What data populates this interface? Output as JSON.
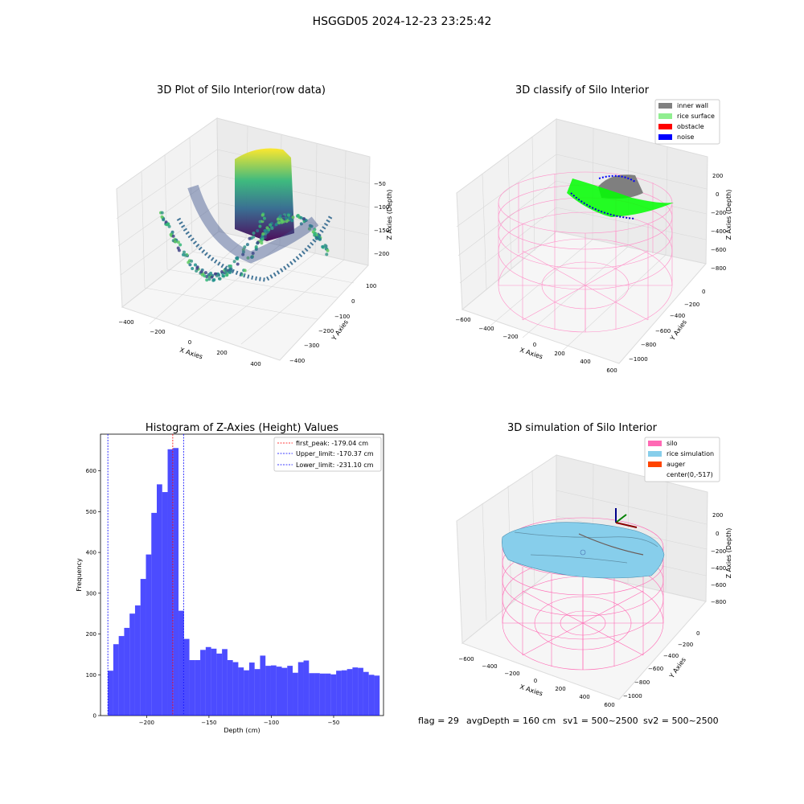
{
  "figure": {
    "suptitle": "HSGGD05 2024-12-23 23:25:42",
    "footer": {
      "flag": "flag = 29",
      "avg": "avgDepth = 160 cm",
      "sv1": "sv1 = 500~2500",
      "sv2": "sv2 = 500~2500"
    }
  },
  "chart_data": [
    {
      "type": "scatter3d",
      "title": "3D Plot of Silo Interior(row data)",
      "xlabel": "X Axies",
      "ylabel": "Y Axies",
      "zlabel": "Z Axies (Depth)",
      "xticks": [
        "−400",
        "−200",
        "0",
        "200",
        "400"
      ],
      "yticks": [
        "100",
        "0",
        "−100",
        "−200",
        "−300",
        "−400"
      ],
      "zticks": [
        "−50",
        "−100",
        "−150",
        "−200"
      ],
      "colormap": "viridis"
    },
    {
      "type": "scatter3d",
      "title": "3D classify of Silo Interior",
      "xlabel": "X Axies",
      "ylabel": "Y Axies",
      "zlabel": "Z Axies (Depth)",
      "xticks": [
        "−600",
        "−400",
        "−200",
        "0",
        "200",
        "400",
        "600"
      ],
      "yticks": [
        "0",
        "−200",
        "−400",
        "−600",
        "−800",
        "−1000"
      ],
      "zticks": [
        "200",
        "0",
        "−200",
        "−400",
        "−600",
        "−800"
      ],
      "legend": [
        {
          "label": "inner wall",
          "color": "#808080"
        },
        {
          "label": "rice surface",
          "color": "#90ee90"
        },
        {
          "label": "obstacle",
          "color": "#ff0000"
        },
        {
          "label": "noise",
          "color": "#0000ff"
        }
      ],
      "legend_position": "top-right"
    },
    {
      "type": "bar",
      "title": "Histogram of Z-Axies (Height) Values",
      "xlabel": "Depth (cm)",
      "ylabel": "Frequency",
      "xlim": [
        -237,
        -10
      ],
      "ylim": [
        0,
        690
      ],
      "xticks": [
        {
          "v": -200,
          "l": "−200"
        },
        {
          "v": -150,
          "l": "−150"
        },
        {
          "v": -100,
          "l": "−100"
        },
        {
          "v": -50,
          "l": "−50"
        }
      ],
      "yticks": [
        {
          "v": 0,
          "l": "0"
        },
        {
          "v": 100,
          "l": "100"
        },
        {
          "v": 200,
          "l": "200"
        },
        {
          "v": 300,
          "l": "300"
        },
        {
          "v": 400,
          "l": "400"
        },
        {
          "v": 500,
          "l": "500"
        },
        {
          "v": 600,
          "l": "600"
        }
      ],
      "bin_start": -231.1,
      "bin_width": 4.36,
      "values": [
        110,
        175,
        195,
        215,
        250,
        270,
        335,
        395,
        497,
        567,
        548,
        653,
        656,
        257,
        188,
        136,
        136,
        161,
        168,
        164,
        152,
        163,
        136,
        131,
        118,
        111,
        130,
        114,
        147,
        122,
        123,
        120,
        117,
        122,
        105,
        131,
        135,
        104,
        104,
        103,
        103,
        101,
        110,
        111,
        114,
        118,
        117,
        107,
        100,
        98
      ],
      "color": "#0000ff",
      "lines": [
        {
          "label": "first_peak: -179.04 cm",
          "value": -179.04,
          "color": "#ff0000"
        },
        {
          "label": "Upper_limit: -170.37 cm",
          "value": -170.37,
          "color": "#0000ff"
        },
        {
          "label": "Lower_limit: -231.10 cm",
          "value": -231.1,
          "color": "#0000ff"
        }
      ],
      "legend_position": "top-right"
    },
    {
      "type": "surface3d",
      "title": "3D simulation of Silo Interior",
      "xlabel": "X Axies",
      "ylabel": "Y Axies",
      "zlabel": "Z Axies (Depth)",
      "xticks": [
        "−600",
        "−400",
        "−200",
        "0",
        "200",
        "400",
        "600"
      ],
      "yticks": [
        "0",
        "−200",
        "−400",
        "−600",
        "−800",
        "−1000"
      ],
      "zticks": [
        "200",
        "0",
        "−200",
        "−400",
        "−600",
        "−800"
      ],
      "legend": [
        {
          "label": "silo",
          "color": "#ff69b4"
        },
        {
          "label": "rice simulation",
          "color": "#87ceeb"
        },
        {
          "label": "auger",
          "color": "#ff4500"
        },
        {
          "label": "center(0,-517)",
          "color": ""
        }
      ],
      "legend_position": "top-right"
    }
  ]
}
